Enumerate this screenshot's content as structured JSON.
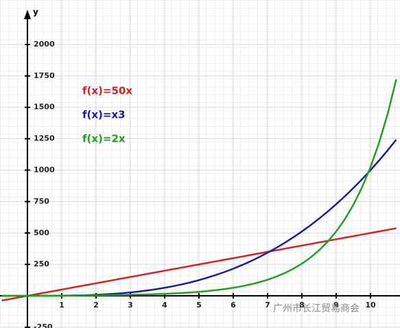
{
  "chart_data": {
    "type": "line",
    "y_label": "y",
    "x": [
      -0.75,
      -0.5,
      -0.25,
      0,
      0.25,
      0.5,
      0.75,
      1,
      1.25,
      1.5,
      1.75,
      2,
      2.25,
      2.5,
      2.75,
      3,
      3.25,
      3.5,
      3.75,
      4,
      4.25,
      4.5,
      4.75,
      5,
      5.25,
      5.5,
      5.75,
      6,
      6.25,
      6.5,
      6.75,
      7,
      7.25,
      7.5,
      7.75,
      8,
      8.25,
      8.5,
      8.75,
      9,
      9.25,
      9.5,
      9.75,
      10,
      10.25,
      10.5,
      10.75
    ],
    "series": [
      {
        "name": "f(x)=50x",
        "color": "#d42222",
        "values": [
          -37.5,
          -25,
          -12.5,
          0,
          12.5,
          25,
          37.5,
          50,
          62.5,
          75,
          87.5,
          100,
          112.5,
          125,
          137.5,
          150,
          162.5,
          175,
          187.5,
          200,
          212.5,
          225,
          237.5,
          250,
          262.5,
          275,
          287.5,
          300,
          312.5,
          325,
          337.5,
          350,
          362.5,
          375,
          387.5,
          400,
          412.5,
          425,
          437.5,
          450,
          462.5,
          475,
          487.5,
          500,
          512.5,
          525,
          537.5
        ]
      },
      {
        "name": "f(x)=x3",
        "color": "#1a1aa8",
        "values": [
          -0.42,
          -0.13,
          -0.02,
          0,
          0.02,
          0.13,
          0.42,
          1,
          1.95,
          3.38,
          5.36,
          8,
          11.39,
          15.63,
          20.8,
          27,
          34.33,
          42.88,
          52.73,
          64,
          76.77,
          91.13,
          107.17,
          125,
          144.7,
          166.38,
          190.11,
          216,
          244.14,
          274.63,
          307.55,
          343,
          381.08,
          421.88,
          465.48,
          512,
          561.52,
          614.13,
          669.92,
          729,
          791.45,
          857.38,
          926.86,
          1000,
          1076.89,
          1157.63,
          1242.3
        ]
      },
      {
        "name": "f(x)=2x",
        "color": "#1fa01f",
        "values": [
          0.59,
          0.71,
          0.84,
          1,
          1.19,
          1.41,
          1.68,
          2,
          2.38,
          2.83,
          3.36,
          4,
          4.76,
          5.66,
          6.73,
          8,
          9.51,
          11.31,
          13.45,
          16,
          19.03,
          22.63,
          26.91,
          32,
          38.05,
          45.25,
          53.82,
          64,
          76.11,
          90.51,
          107.63,
          128,
          152.22,
          181.02,
          215.27,
          256,
          304.44,
          362.04,
          430.53,
          512,
          608.87,
          724.08,
          861.08,
          1024,
          1217.75,
          1448.15,
          1722.16
        ]
      }
    ],
    "xlim": [
      -0.8,
      10.86
    ],
    "ylim": [
      -256,
      2354
    ],
    "xticks": [
      1,
      2,
      3,
      4,
      5,
      6,
      7,
      8,
      9,
      10
    ],
    "yticks": [
      -250,
      250,
      500,
      750,
      1000,
      1250,
      1500,
      1750,
      2000
    ],
    "grid": true,
    "watermark": "广州市长江贸易商会"
  }
}
